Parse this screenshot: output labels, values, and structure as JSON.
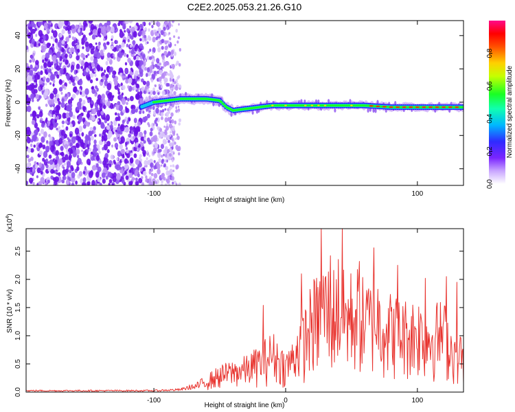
{
  "figure_title": "C2E2.2025.053.21.26.G10",
  "colors": {
    "snr_line": "#e8332e",
    "dot_faint": "#d9c7fb",
    "dot_light": "#b98ef5",
    "dot_mid": "#8c4ff0",
    "dot_dark": "#6a11e6"
  },
  "chart_data": [
    {
      "name": "spectrogram",
      "type": "heatmap",
      "xlabel": "Height of straight line (km)",
      "ylabel": "Frequency (Hz)",
      "xlim": [
        -197,
        135
      ],
      "ylim": [
        -50,
        49
      ],
      "xticks": [
        -100,
        0,
        100
      ],
      "xtick_labels": [
        "-100",
        "",
        "100"
      ],
      "yticks": [
        -40,
        -20,
        0,
        20,
        40
      ],
      "ytick_labels": [
        "-40",
        "-20",
        "0",
        "20",
        "40"
      ],
      "colorbar": {
        "label": "Normalized spectral amplitude",
        "range": [
          0,
          1
        ],
        "ticks": [
          0.0,
          0.2,
          0.4,
          0.6,
          0.8
        ],
        "tick_labels": [
          "0.0",
          "0.2",
          "0.4",
          "0.6",
          "0.8"
        ]
      },
      "signal_trace": {
        "x": [
          -110,
          -100,
          -90,
          -80,
          -70,
          -60,
          -50,
          -45,
          -40,
          -30,
          -20,
          -10,
          0,
          20,
          40,
          60,
          80,
          100,
          120,
          135
        ],
        "frequency": [
          -3,
          0,
          1,
          2,
          2,
          2,
          1,
          -3,
          -5,
          -4,
          -3,
          -2,
          -2,
          -2,
          -2,
          -2,
          -3,
          -3,
          -3,
          -3
        ]
      }
    },
    {
      "name": "snr",
      "type": "line",
      "xlabel": "Height of straight line (km)",
      "ylabel": "SNR (10 * v/v)",
      "y_multiplier_label": "(x10",
      "y_multiplier_exp": "4",
      "y_multiplier_close": ")",
      "xlim": [
        -197,
        135
      ],
      "ylim": [
        0,
        2.9
      ],
      "xticks": [
        -100,
        0,
        100
      ],
      "xtick_labels": [
        "-100",
        "0",
        "100"
      ],
      "yticks": [
        0.0,
        0.5,
        1.0,
        1.5,
        2.0,
        2.5
      ],
      "ytick_labels": [
        "0.0",
        "0.5",
        "1.0",
        "1.5",
        "2.0",
        "2.5"
      ],
      "envelope": {
        "x": [
          -197,
          -100,
          -80,
          -70,
          -60,
          -50,
          -40,
          -30,
          -20,
          -10,
          0,
          5,
          10,
          15,
          20,
          25,
          30,
          35,
          40,
          45,
          50,
          55,
          60,
          70,
          80,
          90,
          100,
          110,
          120,
          125,
          130,
          135
        ],
        "y": [
          0.03,
          0.03,
          0.05,
          0.12,
          0.3,
          0.45,
          0.55,
          0.62,
          0.8,
          1.05,
          0.7,
          0.9,
          1.3,
          1.5,
          1.9,
          2.05,
          2.3,
          2.1,
          2.4,
          2.0,
          2.1,
          2.15,
          1.9,
          2.0,
          1.7,
          1.6,
          1.65,
          1.5,
          1.6,
          1.2,
          1.05,
          1.0
        ]
      },
      "peaks": [
        {
          "x": 27,
          "y": 2.92
        },
        {
          "x": 43,
          "y": 2.9
        },
        {
          "x": 67,
          "y": 2.56
        },
        {
          "x": 34,
          "y": 2.42
        },
        {
          "x": 56,
          "y": 2.32
        },
        {
          "x": 85,
          "y": 2.25
        },
        {
          "x": -17,
          "y": 1.54
        },
        {
          "x": 122,
          "y": 2.05
        },
        {
          "x": 106,
          "y": 2.02
        },
        {
          "x": 130,
          "y": 1.95
        },
        {
          "x": 12,
          "y": 2.1
        }
      ]
    }
  ]
}
